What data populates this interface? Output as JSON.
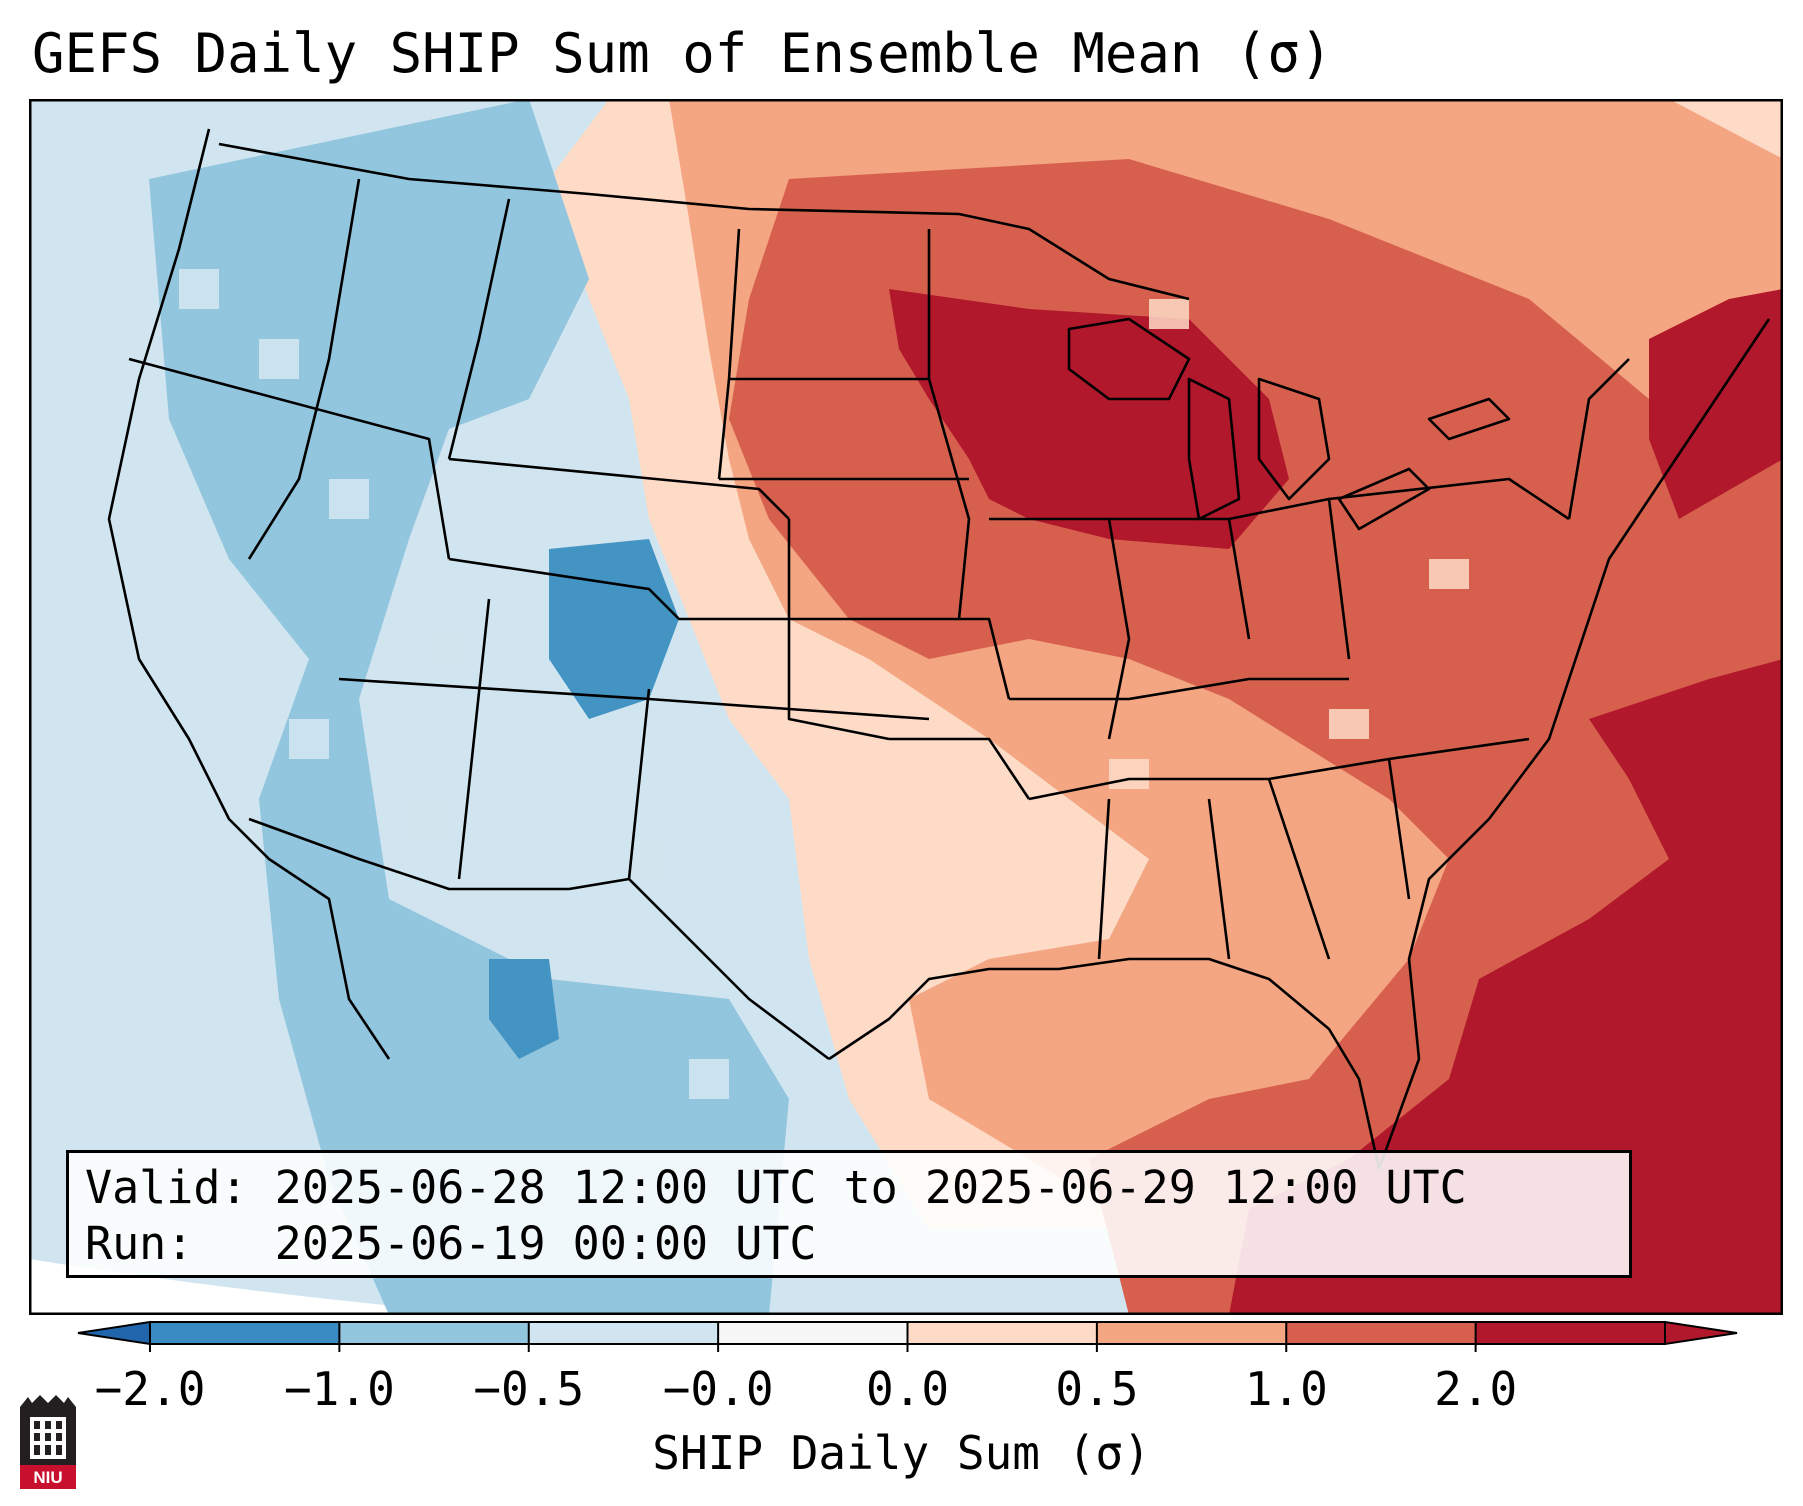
{
  "title": "GEFS Daily SHIP Sum of Ensemble Mean (σ)",
  "info": {
    "valid_label": "Valid:",
    "valid_value": "2025-06-28 12:00 UTC to 2025-06-29 12:00 UTC",
    "run_label": "Run:",
    "run_value": "2025-06-19 00:00 UTC"
  },
  "colorbar": {
    "label": "SHIP Daily Sum (σ)",
    "ticks": [
      "−2.0",
      "−1.0",
      "−0.5",
      "−0.0",
      "0.0",
      "0.5",
      "1.0",
      "2.0"
    ],
    "colors": [
      "#3a8ac4",
      "#92c5de",
      "#d1e5f0",
      "#f7f7f7",
      "#fddbc7",
      "#f4a582",
      "#d6604d",
      "#b2182b"
    ],
    "extend_low_color": "#2166ac",
    "extend_high_color": "#b2182b"
  },
  "map": {
    "region": "Continental United States",
    "colors": {
      "ocean_far": "#d1e5f0",
      "strong_neg": "#4393c3",
      "mod_neg": "#92c5de",
      "weak_neg": "#d1e5f0",
      "weak_pos": "#fddbc7",
      "mod_pos": "#f4a582",
      "strong_pos": "#d6604d",
      "very_pos": "#b2182b",
      "border": "#000000"
    }
  },
  "logo": {
    "text": "NIU",
    "color": "#c8102e"
  }
}
